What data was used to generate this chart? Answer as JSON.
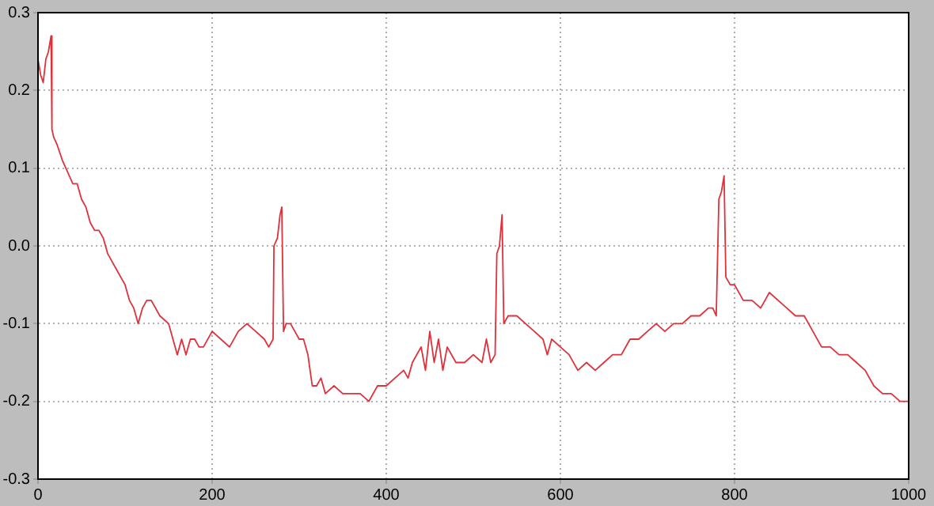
{
  "chart_data": {
    "type": "line",
    "xlim": [
      0,
      1000
    ],
    "ylim": [
      -0.3,
      0.3
    ],
    "xticks": [
      0,
      200,
      400,
      600,
      800,
      1000
    ],
    "yticks": [
      -0.3,
      -0.2,
      -0.1,
      {
        "value": 0,
        "label": "0.0"
      },
      0.1,
      0.2,
      0.3
    ],
    "grid": true,
    "legend": false,
    "marker": "none",
    "line_style": "solid",
    "series": [
      {
        "color": "#e0303a",
        "x": [
          0,
          3,
          6,
          9,
          12,
          15,
          16,
          18,
          22,
          28,
          32,
          36,
          40,
          45,
          50,
          55,
          60,
          65,
          70,
          75,
          80,
          85,
          90,
          95,
          100,
          105,
          110,
          115,
          120,
          125,
          130,
          140,
          150,
          155,
          160,
          165,
          170,
          175,
          180,
          185,
          190,
          200,
          210,
          220,
          230,
          240,
          250,
          260,
          265,
          270,
          271,
          275,
          278,
          280,
          282,
          285,
          290,
          295,
          300,
          305,
          310,
          315,
          320,
          325,
          330,
          340,
          350,
          360,
          370,
          380,
          390,
          400,
          410,
          420,
          425,
          430,
          440,
          445,
          450,
          455,
          460,
          465,
          470,
          480,
          490,
          500,
          510,
          515,
          520,
          525,
          527,
          530,
          533,
          535,
          540,
          550,
          560,
          570,
          580,
          585,
          590,
          600,
          610,
          620,
          630,
          640,
          650,
          660,
          670,
          680,
          690,
          700,
          710,
          720,
          730,
          740,
          750,
          760,
          770,
          775,
          779,
          782,
          785,
          788,
          790,
          795,
          800,
          810,
          820,
          830,
          835,
          840,
          850,
          860,
          870,
          880,
          890,
          900,
          910,
          920,
          930,
          940,
          950,
          960,
          970,
          980,
          990,
          1000
        ],
        "values": [
          0.24,
          0.22,
          0.21,
          0.24,
          0.25,
          0.27,
          0.15,
          0.14,
          0.13,
          0.11,
          0.1,
          0.09,
          0.08,
          0.08,
          0.06,
          0.05,
          0.03,
          0.02,
          0.02,
          0.01,
          -0.01,
          -0.02,
          -0.03,
          -0.04,
          -0.05,
          -0.07,
          -0.08,
          -0.1,
          -0.08,
          -0.07,
          -0.07,
          -0.09,
          -0.1,
          -0.12,
          -0.14,
          -0.12,
          -0.14,
          -0.12,
          -0.12,
          -0.13,
          -0.13,
          -0.11,
          -0.12,
          -0.13,
          -0.11,
          -0.1,
          -0.11,
          -0.12,
          -0.13,
          -0.12,
          0.0,
          0.01,
          0.04,
          0.05,
          -0.11,
          -0.1,
          -0.1,
          -0.11,
          -0.12,
          -0.12,
          -0.14,
          -0.18,
          -0.18,
          -0.17,
          -0.19,
          -0.18,
          -0.19,
          -0.19,
          -0.19,
          -0.2,
          -0.18,
          -0.18,
          -0.17,
          -0.16,
          -0.17,
          -0.15,
          -0.13,
          -0.16,
          -0.11,
          -0.15,
          -0.12,
          -0.16,
          -0.13,
          -0.15,
          -0.15,
          -0.14,
          -0.15,
          -0.12,
          -0.15,
          -0.14,
          -0.01,
          0.0,
          0.04,
          -0.1,
          -0.09,
          -0.09,
          -0.1,
          -0.11,
          -0.12,
          -0.14,
          -0.12,
          -0.13,
          -0.14,
          -0.16,
          -0.15,
          -0.16,
          -0.15,
          -0.14,
          -0.14,
          -0.12,
          -0.12,
          -0.11,
          -0.1,
          -0.11,
          -0.1,
          -0.1,
          -0.09,
          -0.09,
          -0.08,
          -0.08,
          -0.09,
          0.06,
          0.07,
          0.09,
          -0.04,
          -0.05,
          -0.05,
          -0.07,
          -0.07,
          -0.08,
          -0.07,
          -0.06,
          -0.07,
          -0.08,
          -0.09,
          -0.09,
          -0.11,
          -0.13,
          -0.13,
          -0.14,
          -0.14,
          -0.15,
          -0.16,
          -0.18,
          -0.19,
          -0.19,
          -0.2,
          -0.2
        ]
      }
    ]
  }
}
